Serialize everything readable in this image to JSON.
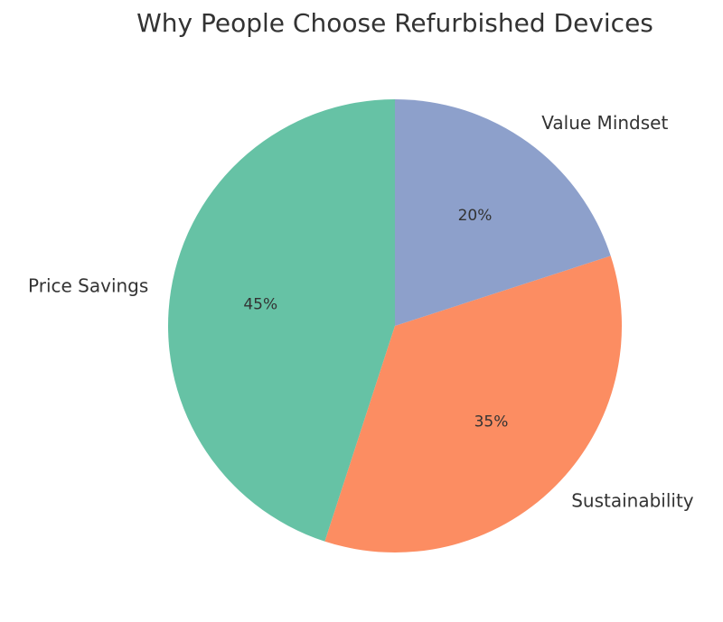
{
  "chart_data": {
    "type": "pie",
    "title": "Why People Choose Refurbished Devices",
    "categories": [
      "Price Savings",
      "Sustainability",
      "Value Mindset"
    ],
    "values": [
      45,
      35,
      20
    ],
    "value_labels": [
      "45%",
      "35%",
      "20%"
    ],
    "colors": [
      "#66c2a5",
      "#fc8d62",
      "#8da0cb"
    ]
  }
}
